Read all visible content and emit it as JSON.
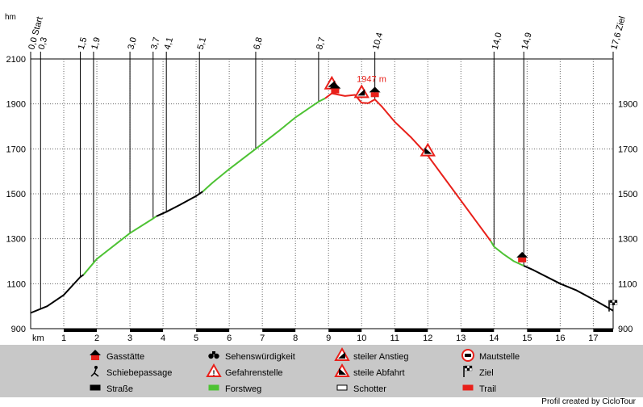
{
  "chart_data": {
    "type": "line",
    "y_unit": "hm",
    "x_unit": "km",
    "xlim": [
      0,
      17.6
    ],
    "ylim": [
      900,
      2100
    ],
    "y_ticks": [
      900,
      1100,
      1300,
      1500,
      1700,
      1900,
      2100
    ],
    "y_tick_labels": [
      "900",
      "1100",
      "1300",
      "1500",
      "1700",
      "1900",
      "2100"
    ],
    "y_tick_labels_right": [
      "900",
      "1100",
      "1300",
      "1500",
      "1700",
      "1900",
      ""
    ],
    "x_ticks": [
      1,
      2,
      3,
      4,
      5,
      6,
      7,
      8,
      9,
      10,
      11,
      12,
      13,
      14,
      15,
      16,
      17
    ],
    "x_tick_labels": [
      "1",
      "2",
      "3",
      "4",
      "5",
      "6",
      "7",
      "8",
      "9",
      "10",
      "11",
      "12",
      "13",
      "14",
      "15",
      "16",
      "17"
    ],
    "grid": true,
    "waypoints": [
      {
        "km": 0.0,
        "label": "0,0 Start"
      },
      {
        "km": 0.3,
        "label": "0,3"
      },
      {
        "km": 1.5,
        "label": "1,5"
      },
      {
        "km": 1.9,
        "label": "1,9"
      },
      {
        "km": 3.0,
        "label": "3,0"
      },
      {
        "km": 3.7,
        "label": "3,7"
      },
      {
        "km": 4.1,
        "label": "4,1"
      },
      {
        "km": 5.1,
        "label": "5,1"
      },
      {
        "km": 6.8,
        "label": "6,8"
      },
      {
        "km": 8.7,
        "label": "8,7"
      },
      {
        "km": 10.4,
        "label": "10,4"
      },
      {
        "km": 14.0,
        "label": "14,0"
      },
      {
        "km": 14.9,
        "label": "14,9"
      },
      {
        "km": 17.6,
        "label": "17,6 Ziel"
      }
    ],
    "series": [
      {
        "surface": "Straße",
        "color": "#000000",
        "x": [
          0.0,
          0.5,
          1.0,
          1.5,
          1.6
        ],
        "y": [
          970,
          1000,
          1050,
          1130,
          1140
        ]
      },
      {
        "surface": "Forstweg",
        "color": "#4dc233",
        "x": [
          1.6,
          2.0,
          3.0,
          3.7,
          3.8
        ],
        "y": [
          1140,
          1210,
          1325,
          1390,
          1400
        ]
      },
      {
        "surface": "Straße",
        "color": "#000000",
        "x": [
          3.8,
          4.1,
          4.5,
          5.0,
          5.2
        ],
        "y": [
          1400,
          1420,
          1450,
          1490,
          1510
        ]
      },
      {
        "surface": "Forstweg",
        "color": "#4dc233",
        "x": [
          5.2,
          5.5,
          6.0,
          6.8,
          7.5,
          8.0,
          8.7,
          8.9
        ],
        "y": [
          1510,
          1550,
          1610,
          1700,
          1780,
          1840,
          1910,
          1925
        ]
      },
      {
        "surface": "Trail",
        "color": "#e8201a",
        "x": [
          8.9,
          9.1,
          9.5,
          9.8,
          10.0,
          10.2,
          10.4,
          10.6,
          11.0,
          11.5,
          12.0,
          12.5,
          13.0,
          13.5,
          13.9
        ],
        "y": [
          1925,
          1947,
          1935,
          1940,
          1905,
          1903,
          1920,
          1890,
          1820,
          1750,
          1670,
          1570,
          1470,
          1370,
          1290
        ]
      },
      {
        "surface": "Forstweg",
        "color": "#4dc233",
        "x": [
          13.9,
          14.0,
          14.3,
          14.6,
          14.9
        ],
        "y": [
          1290,
          1265,
          1230,
          1200,
          1180
        ]
      },
      {
        "surface": "Straße",
        "color": "#000000",
        "x": [
          14.9,
          15.2,
          16.0,
          16.5,
          17.0,
          17.6
        ],
        "y": [
          1180,
          1160,
          1100,
          1070,
          1030,
          980
        ]
      }
    ],
    "annotations": [
      {
        "text": "1947 m",
        "x": 10.3,
        "y": 1947
      }
    ],
    "markers": [
      {
        "type": "steiler Anstieg",
        "x": 9.1,
        "y": 1968
      },
      {
        "type": "Gasstätte",
        "x": 9.2,
        "y": 1947
      },
      {
        "type": "steiler Anstieg",
        "x": 10.0,
        "y": 1930
      },
      {
        "type": "Gasstätte",
        "x": 10.4,
        "y": 1930
      },
      {
        "type": "steile Abfahrt",
        "x": 12.0,
        "y": 1670
      },
      {
        "type": "Gasstätte",
        "x": 14.85,
        "y": 1195
      },
      {
        "type": "Ziel",
        "x": 17.6,
        "y": 980
      }
    ]
  },
  "legend": {
    "items": [
      {
        "label": "Gasstätte",
        "icon": "restaurant-icon"
      },
      {
        "label": "Sehenswürdigkeit",
        "icon": "binoculars-icon"
      },
      {
        "label": "steiler Anstieg",
        "icon": "steep-climb-icon"
      },
      {
        "label": "Mautstelle",
        "icon": "toll-icon"
      },
      {
        "label": "Schiebepassage",
        "icon": "push-bike-icon"
      },
      {
        "label": "Gefahrenstelle",
        "icon": "danger-icon"
      },
      {
        "label": "steile Abfahrt",
        "icon": "steep-descent-icon"
      },
      {
        "label": "Ziel",
        "icon": "finish-flag-icon"
      },
      {
        "label": "Straße",
        "icon": "road-swatch",
        "color": "#000000"
      },
      {
        "label": "Forstweg",
        "icon": "forest-road-swatch",
        "color": "#4dc233"
      },
      {
        "label": "Schotter",
        "icon": "gravel-swatch",
        "color": "#ffffff"
      },
      {
        "label": "Trail",
        "icon": "trail-swatch",
        "color": "#e8201a"
      }
    ]
  },
  "credit": "Profil created by CicloTour",
  "colors": {
    "road": "#000000",
    "forest": "#4dc233",
    "trail": "#e8201a",
    "legend_bg": "#c8c8c8",
    "grid": "#555555"
  }
}
